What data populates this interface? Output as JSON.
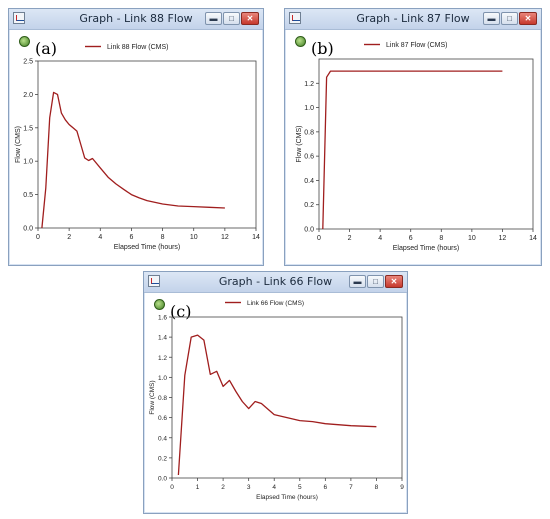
{
  "windows": [
    {
      "title": "Graph - Link 88 Flow",
      "panel_label": "(a)",
      "controls": {
        "minimize": "▬",
        "maximize": "□",
        "close": "✕"
      }
    },
    {
      "title": "Graph - Link 87 Flow",
      "panel_label": "(b)",
      "controls": {
        "minimize": "▬",
        "maximize": "□",
        "close": "✕"
      }
    },
    {
      "title": "Graph - Link 66 Flow",
      "panel_label": "(c)",
      "controls": {
        "minimize": "▬",
        "maximize": "□",
        "close": "✕"
      }
    }
  ],
  "chart_data": [
    {
      "type": "line",
      "legend": "Link 88 Flow (CMS)",
      "legend_position": "top-center",
      "xlabel": "Elapsed Time (hours)",
      "ylabel": "Flow (CMS)",
      "xlim": [
        0,
        14
      ],
      "ylim": [
        0,
        2.5
      ],
      "xticks": [
        "0",
        "2",
        "4",
        "6",
        "8",
        "10",
        "12",
        "14"
      ],
      "yticks": [
        "0.0",
        "0.5",
        "1.0",
        "1.5",
        "2.0",
        "2.5"
      ],
      "grid": false,
      "line_color": "#a01e1e",
      "series": [
        {
          "name": "Link 88 Flow (CMS)",
          "x": [
            0.25,
            0.5,
            0.75,
            1.0,
            1.25,
            1.5,
            1.75,
            2.0,
            2.25,
            2.5,
            2.75,
            3.0,
            3.25,
            3.5,
            4.0,
            4.5,
            5.0,
            5.5,
            6.0,
            6.5,
            7.0,
            8.0,
            9.0,
            10.0,
            11.0,
            12.0
          ],
          "y": [
            0.0,
            0.6,
            1.65,
            2.03,
            2.0,
            1.72,
            1.62,
            1.55,
            1.5,
            1.45,
            1.25,
            1.05,
            1.01,
            1.04,
            0.9,
            0.76,
            0.66,
            0.58,
            0.5,
            0.45,
            0.41,
            0.36,
            0.33,
            0.32,
            0.31,
            0.3
          ]
        }
      ]
    },
    {
      "type": "line",
      "legend": "Link 87 Flow (CMS)",
      "legend_position": "top-center",
      "xlabel": "Elapsed Time (hours)",
      "ylabel": "Flow (CMS)",
      "xlim": [
        0,
        14
      ],
      "ylim": [
        0,
        1.4
      ],
      "xticks": [
        "0",
        "2",
        "4",
        "6",
        "8",
        "10",
        "12",
        "14"
      ],
      "yticks": [
        "0.0",
        "0.2",
        "0.4",
        "0.6",
        "0.8",
        "1.0",
        "1.2"
      ],
      "grid": false,
      "line_color": "#a01e1e",
      "series": [
        {
          "name": "Link 87 Flow (CMS)",
          "x": [
            0.25,
            0.5,
            0.75,
            1.0,
            2.0,
            4.0,
            6.0,
            8.0,
            10.0,
            12.0
          ],
          "y": [
            0.0,
            1.25,
            1.3,
            1.3,
            1.3,
            1.3,
            1.3,
            1.3,
            1.3,
            1.3
          ]
        }
      ]
    },
    {
      "type": "line",
      "legend": "Link 66 Flow (CMS)",
      "legend_position": "top-center",
      "xlabel": "Elapsed Time (hours)",
      "ylabel": "Flow (CMS)",
      "xlim": [
        0,
        9
      ],
      "ylim": [
        0,
        1.6
      ],
      "xticks": [
        "0",
        "1",
        "2",
        "3",
        "4",
        "5",
        "6",
        "7",
        "8",
        "9"
      ],
      "yticks": [
        "0.0",
        "0.2",
        "0.4",
        "0.6",
        "0.8",
        "1.0",
        "1.2",
        "1.4",
        "1.6"
      ],
      "grid": false,
      "line_color": "#a01e1e",
      "series": [
        {
          "name": "Link 66 Flow (CMS)",
          "x": [
            0.25,
            0.5,
            0.75,
            1.0,
            1.25,
            1.5,
            1.75,
            2.0,
            2.25,
            2.5,
            2.75,
            3.0,
            3.25,
            3.5,
            4.0,
            4.5,
            5.0,
            5.5,
            6.0,
            7.0,
            8.0
          ],
          "y": [
            0.03,
            1.02,
            1.4,
            1.42,
            1.37,
            1.03,
            1.06,
            0.91,
            0.97,
            0.86,
            0.76,
            0.69,
            0.76,
            0.74,
            0.63,
            0.6,
            0.57,
            0.56,
            0.54,
            0.52,
            0.51
          ]
        }
      ]
    }
  ]
}
